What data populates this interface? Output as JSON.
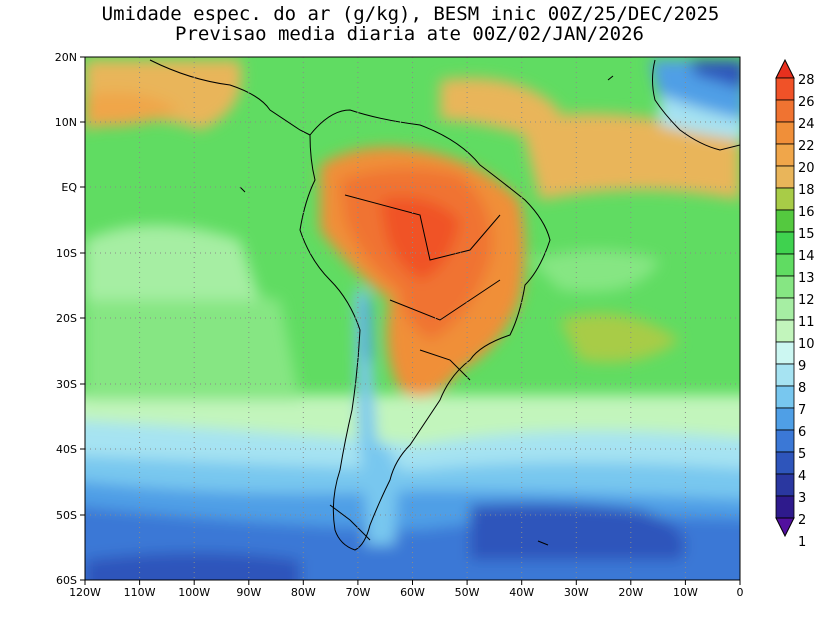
{
  "title": {
    "line1": "Umidade espec. do ar (g/kg), BESM inic 00Z/25/DEC/2025",
    "line2": "Previsao media diaria ate 00Z/02/JAN/2026"
  },
  "axes": {
    "lat_labels": [
      "20N",
      "10N",
      "EQ",
      "10S",
      "20S",
      "30S",
      "40S",
      "50S",
      "60S"
    ],
    "lon_labels": [
      "120W",
      "110W",
      "100W",
      "90W",
      "80W",
      "70W",
      "60W",
      "50W",
      "40W",
      "30W",
      "20W",
      "10W",
      "0"
    ]
  },
  "colorbar": {
    "ticks": [
      "28",
      "26",
      "24",
      "22",
      "20",
      "18",
      "16",
      "15",
      "14",
      "13",
      "12",
      "11",
      "10",
      "9",
      "8",
      "7",
      "6",
      "5",
      "4",
      "3",
      "2",
      "1"
    ],
    "colors_top_to_bottom": [
      "#e8301e",
      "#f05228",
      "#f07331",
      "#f08f39",
      "#f0a64a",
      "#e9b55a",
      "#a8cc47",
      "#54c93f",
      "#3fd24f",
      "#60dc62",
      "#86e683",
      "#a6eea3",
      "#c2f5bc",
      "#ccf7f2",
      "#a6e3f2",
      "#78c7ef",
      "#4f9fe6",
      "#3b78d6",
      "#2e55bb",
      "#2a37a0",
      "#2e1a8c",
      "#52109f"
    ]
  },
  "colors": {
    "land_outline": "#000000",
    "grid": "#888888"
  }
}
